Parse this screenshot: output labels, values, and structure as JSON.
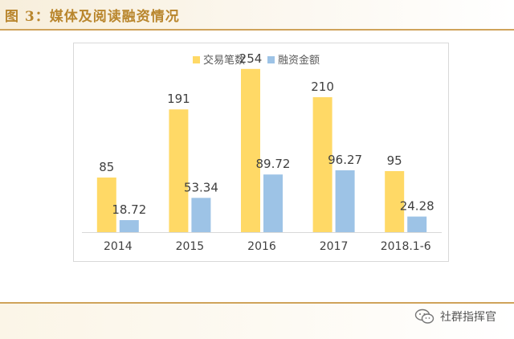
{
  "page": {
    "title": "图 3：媒体及阅读融资情况"
  },
  "watermark": {
    "text": "社群指挥官",
    "icon": "wechat-icon"
  },
  "chart_data": {
    "type": "bar",
    "title": "",
    "xlabel": "",
    "ylabel": "",
    "legend_position": "top-center",
    "grid": false,
    "categories": [
      "2014",
      "2015",
      "2016",
      "2017",
      "2018.1-6"
    ],
    "series": [
      {
        "name": "交易笔数",
        "color": "#ffd966",
        "values": [
          85,
          191,
          254,
          210,
          95
        ],
        "labels": [
          "85",
          "191",
          "254",
          "210",
          "95"
        ]
      },
      {
        "name": "融资金额",
        "color": "#9dc3e6",
        "values": [
          18.72,
          53.34,
          89.72,
          96.27,
          24.28
        ],
        "labels": [
          "18.72",
          "53.34",
          "89.72",
          "96.27",
          "24.28"
        ]
      }
    ]
  }
}
